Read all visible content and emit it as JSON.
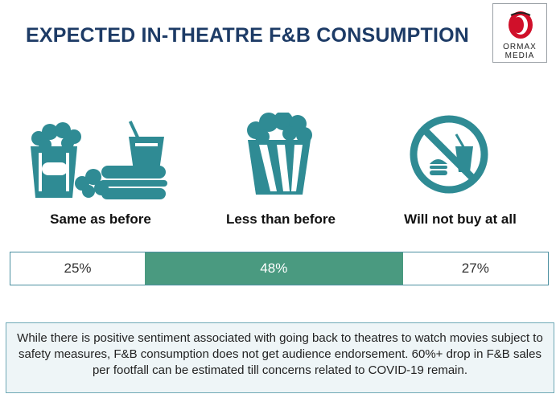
{
  "title": "EXPECTED IN-THEATRE F&B CONSUMPTION",
  "logo": {
    "line1": "ORMAX",
    "line2": "MEDIA"
  },
  "categories": [
    {
      "label": "Same as before",
      "value": "25%",
      "icon": "popcorn-burger-drink-icon"
    },
    {
      "label": "Less than before",
      "value": "48%",
      "icon": "popcorn-bucket-icon"
    },
    {
      "label": "Will not buy at all",
      "value": "27%",
      "icon": "no-food-icon"
    }
  ],
  "shares": [
    0.25,
    0.48,
    0.27
  ],
  "colors": {
    "title": "#1d3b66",
    "icon": "#2f8b94",
    "highlight": "#4a9a80",
    "logo_red": "#d0102a"
  },
  "note": "While there is positive sentiment associated with going back to theatres to watch movies subject to safety measures, F&B consumption does not get audience endorsement. 60%+ drop in F&B sales per footfall can be estimated till concerns related to COVID-19 remain."
}
